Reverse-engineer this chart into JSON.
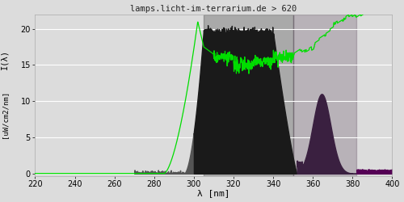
{
  "title": "lamps.licht-im-terrarium.de > 620",
  "xlabel": "λ [nm]",
  "ylabel_line1": "I(λ)",
  "ylabel_line2": "[uW/cm2/nm]",
  "xlim": [
    220,
    400
  ],
  "ylim": [
    -0.3,
    22
  ],
  "yticks": [
    0,
    5,
    10,
    15,
    20
  ],
  "xticks": [
    220,
    240,
    260,
    280,
    300,
    320,
    340,
    360,
    380,
    400
  ],
  "bg_color": "#dcdcdc",
  "plot_bg_color": "#dcdcdc",
  "grid_color": "#ffffff",
  "title_color": "#222222",
  "green_color": "#00dd00",
  "dark_fill_color": "#1a1a1a",
  "gray_fill_color": "#555555",
  "purple_fill_color": "#3a2040",
  "purple_bar_color": "#550055"
}
